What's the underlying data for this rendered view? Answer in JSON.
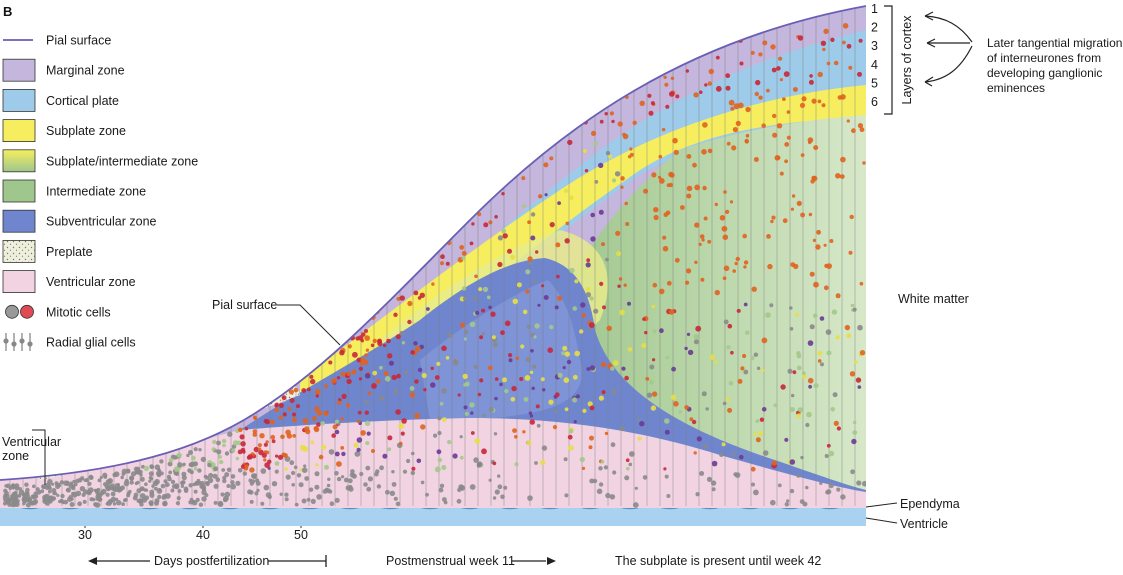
{
  "panel_label": "B",
  "legend": [
    {
      "key": "pial",
      "label": "Pial surface",
      "color": "#6a5fb5",
      "swatch": "line"
    },
    {
      "key": "marginal",
      "label": "Marginal zone",
      "color": "#c4b6dc",
      "swatch": "box"
    },
    {
      "key": "cortical",
      "label": "Cortical plate",
      "color": "#9fcbea",
      "swatch": "box"
    },
    {
      "key": "subplate",
      "label": "Subplate zone",
      "color": "#f6ee5e",
      "swatch": "box"
    },
    {
      "key": "subplate_intermediate",
      "label": "Subplate/intermediate zone",
      "color": "#e7eb8c",
      "swatch": "gradient"
    },
    {
      "key": "intermediate",
      "label": "Intermediate zone",
      "color": "#9fc68d",
      "swatch": "box"
    },
    {
      "key": "subventricular",
      "label": "Subventricular zone",
      "color": "#6f86cf",
      "swatch": "box"
    },
    {
      "key": "preplate",
      "label": "Preplate",
      "color": "#eef0dd",
      "swatch": "dots"
    },
    {
      "key": "ventricular",
      "label": "Ventricular zone",
      "color": "#f1d3e2",
      "swatch": "box"
    },
    {
      "key": "mitotic",
      "label": "Mitotic cells",
      "color": "#e04a55",
      "swatch": "cells"
    },
    {
      "key": "radial",
      "label": "Radial glial cells",
      "color": "#888888",
      "swatch": "glia"
    }
  ],
  "colors": {
    "ventricle": "#a8d2ef",
    "ependyma": "#7fb0d8",
    "white_matter": "#e8e6dd",
    "red_cells": "#c8273a",
    "orange_cells": "#e0631f",
    "yellow_cells": "#e6df45",
    "green_cells": "#a3c98a",
    "purple_cells": "#6b3a93",
    "gray_cells": "#8a8a8a"
  },
  "layer_numbers": [
    "1",
    "2",
    "3",
    "4",
    "5",
    "6"
  ],
  "layers_label": "Layers of cortex",
  "migration_note": [
    "Later tangential migration",
    "of interneurones from",
    "developing ganglionic",
    "eminences"
  ],
  "annotations": {
    "pial_surface": "Pial surface",
    "ventricular_zone": [
      "Ventricular",
      "zone"
    ],
    "white_matter": "White matter",
    "ependyma": "Ependyma",
    "ventricle": "Ventricle"
  },
  "axis": {
    "ticks": [
      "30",
      "40",
      "50"
    ],
    "days_label": "Days postfertilization",
    "week_label": "Postmenstrual week 11",
    "subplate_note": "The subplate is present until week 42"
  }
}
